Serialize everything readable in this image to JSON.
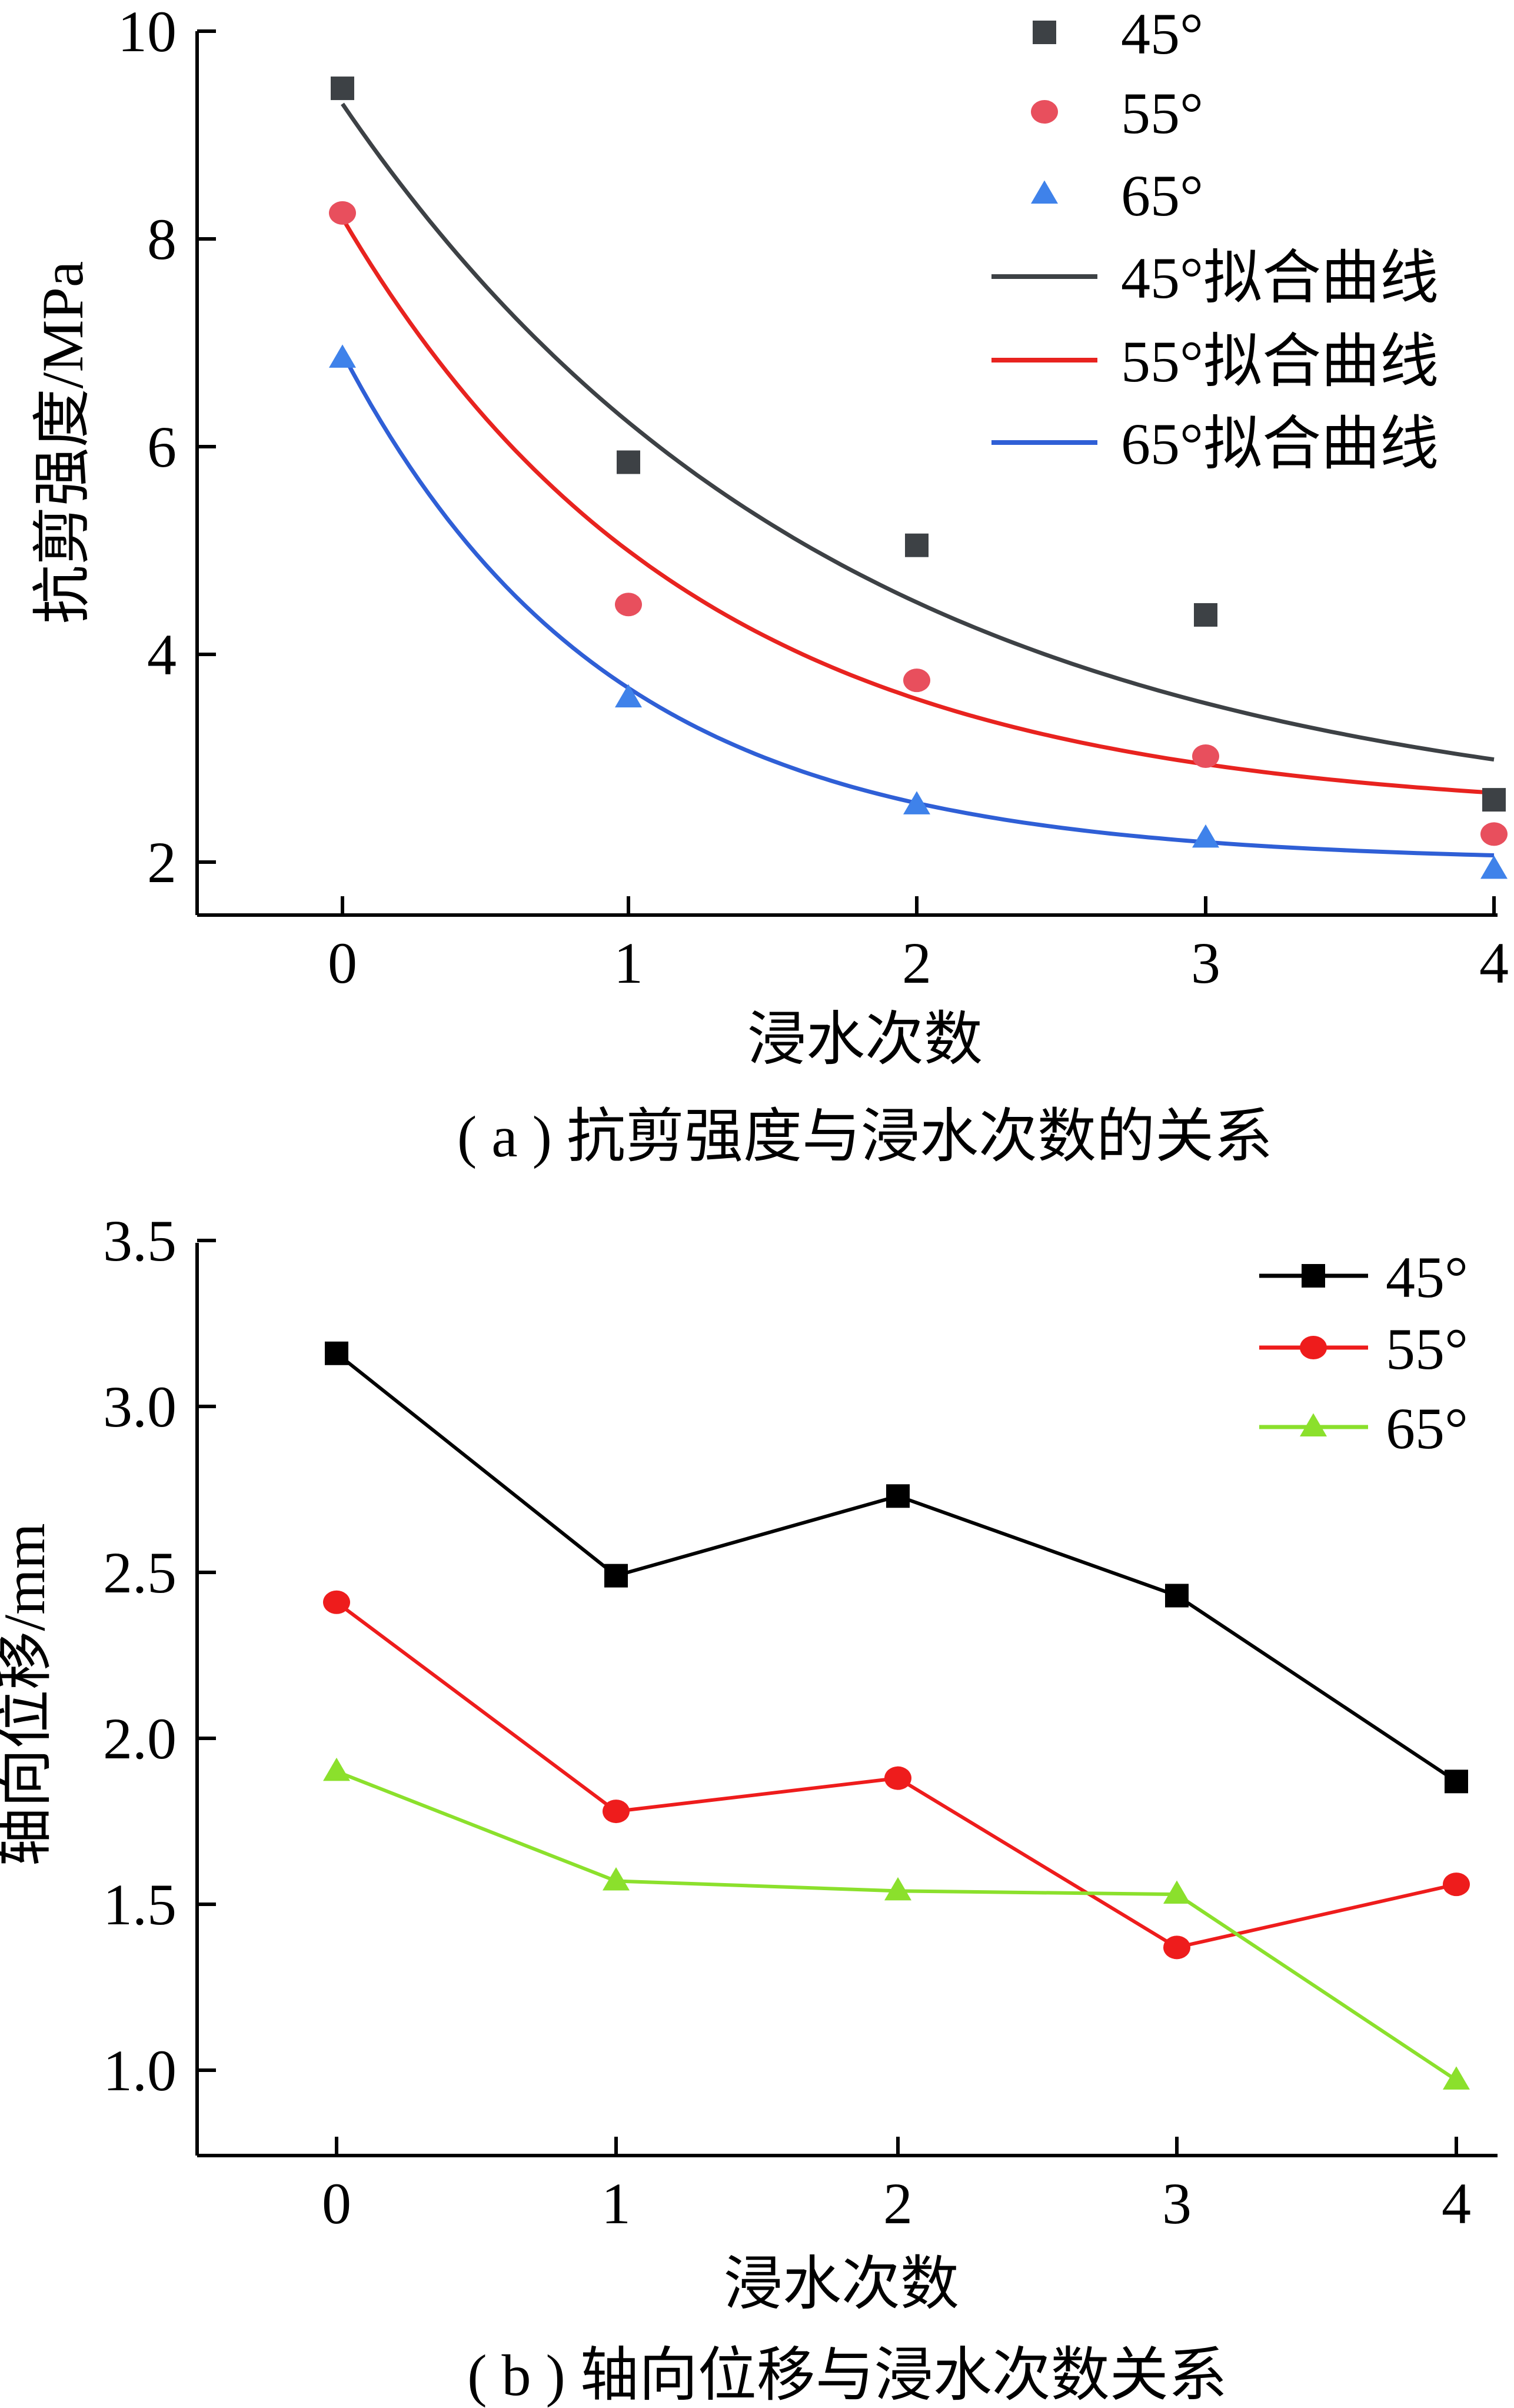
{
  "chart_data": [
    {
      "type": "scatter",
      "caption": "( a ) 抗剪强度与浸水次数的关系",
      "xlabel": "浸水次数",
      "ylabel": "抗剪强度/MPa",
      "xlim": [
        -0.5,
        4
      ],
      "ylim": [
        1.5,
        10
      ],
      "xticks": [
        "0",
        "1",
        "2",
        "3",
        "4"
      ],
      "yticks": [
        "2",
        "4",
        "6",
        "8",
        "10"
      ],
      "x": [
        0,
        1,
        2,
        3,
        4
      ],
      "series": [
        {
          "name": "45°",
          "marker": "square",
          "color": "#3d4145",
          "values": [
            9.45,
            5.85,
            5.05,
            4.38,
            2.6
          ]
        },
        {
          "name": "55°",
          "marker": "circle",
          "color": "#e84f5d",
          "values": [
            8.25,
            4.48,
            3.75,
            3.02,
            2.27
          ]
        },
        {
          "name": "65°",
          "marker": "triangle",
          "color": "#3f82ea",
          "values": [
            6.85,
            3.58,
            2.55,
            2.23,
            1.93
          ]
        }
      ],
      "fits": [
        {
          "name": "45°拟合曲线",
          "color": "#3d4145",
          "y0": 9.3,
          "asymptote": 2.3,
          "k": 0.58,
          "xmin": 0,
          "xmax": 4
        },
        {
          "name": "55°拟合曲线",
          "color": "#e8231f",
          "y0": 8.2,
          "asymptote": 2.45,
          "k": 0.82,
          "xmin": 0,
          "xmax": 4
        },
        {
          "name": "65°拟合曲线",
          "color": "#2f5fd6",
          "y0": 6.9,
          "asymptote": 2.0,
          "k": 1.08,
          "xmin": 0,
          "xmax": 4
        }
      ]
    },
    {
      "type": "line",
      "caption": "( b ) 轴向位移与浸水次数关系",
      "xlabel": "浸水次数",
      "ylabel": "轴向位移/mm",
      "xlim": [
        -0.5,
        4
      ],
      "ylim": [
        0.75,
        3.5
      ],
      "xticks": [
        "0",
        "1",
        "2",
        "3",
        "4"
      ],
      "yticks": [
        "1.0",
        "1.5",
        "2.0",
        "2.5",
        "3.0",
        "3.5"
      ],
      "x": [
        0,
        1,
        2,
        3,
        4
      ],
      "series": [
        {
          "name": "45°",
          "marker": "square",
          "color": "#000000",
          "values": [
            3.16,
            2.49,
            2.73,
            2.43,
            1.87
          ]
        },
        {
          "name": "55°",
          "marker": "circle",
          "color": "#ee1c1c",
          "values": [
            2.41,
            1.78,
            1.88,
            1.37,
            1.56
          ]
        },
        {
          "name": "65°",
          "marker": "triangle",
          "color": "#8be02c",
          "values": [
            1.9,
            1.57,
            1.54,
            1.53,
            0.97
          ]
        }
      ]
    }
  ]
}
